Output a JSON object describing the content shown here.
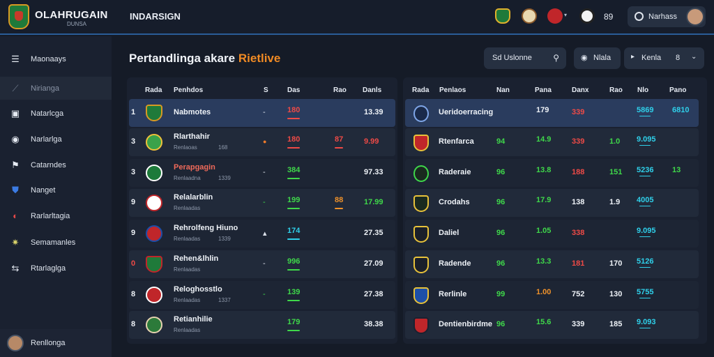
{
  "header": {
    "brand": "OLAHRUGAIN",
    "brand_sub": "DUNSA",
    "nav_title": "INDARSIGN",
    "count": "89",
    "user_name": "Narhass"
  },
  "sidebar": {
    "items": [
      {
        "label": "Maonaays",
        "icon": "stack-icon"
      },
      {
        "label": "Nirianga",
        "icon": "chart-icon"
      },
      {
        "label": "Natarlcga",
        "icon": "card-icon"
      },
      {
        "label": "Narlarlga",
        "icon": "ring-icon"
      },
      {
        "label": "Catarndes",
        "icon": "flag-icon"
      },
      {
        "label": "Nanget",
        "icon": "shield-icon"
      },
      {
        "label": "Rarlarltagia",
        "icon": "ball-icon"
      },
      {
        "label": "Semamanles",
        "icon": "gear-icon"
      },
      {
        "label": "Rtarlaglga",
        "icon": "transfer-icon"
      }
    ],
    "footer_label": "Renllonga"
  },
  "main": {
    "title_prefix": "Pertandlinga akare",
    "title_accent": "Rietlive",
    "search_label": "Sd Uslonne",
    "filter_label": "Nlala",
    "sort_label": "Kenla",
    "sort_value": "8"
  },
  "left_table": {
    "headers": [
      "Rada",
      "Penhdos",
      "S",
      "Das",
      "Rao",
      "Danls"
    ],
    "rows": [
      {
        "rank": "1",
        "team": "Nabmotes",
        "sub": "",
        "sub2": "",
        "mark": "-",
        "c1": "180",
        "c2": "",
        "total": "13.39",
        "c1_color": "red",
        "c2_color": "",
        "total_color": "white"
      },
      {
        "rank": "3",
        "team": "Rlarthahir",
        "sub": "Renlaoas",
        "sub2": "168",
        "mark": "●",
        "c1": "180",
        "c2": "87",
        "total": "9.99",
        "c1_color": "red",
        "c2_color": "red",
        "total_color": "red"
      },
      {
        "rank": "3",
        "team": "Perapgagin",
        "sub": "Renlaadna",
        "sub2": "1339",
        "mark": "-",
        "c1": "384",
        "c2": "",
        "total": "97.33",
        "c1_color": "green",
        "c2_color": "",
        "total_color": "white"
      },
      {
        "rank": "9",
        "team": "Relalarblin",
        "sub": "Renlaadas",
        "sub2": "",
        "mark": "-",
        "c1": "199",
        "c2": "88",
        "total": "17.99",
        "c1_color": "green",
        "c2_color": "orange",
        "total_color": "green"
      },
      {
        "rank": "9",
        "team": "Rehrolfeng Hiuno",
        "sub": "Renlaadas",
        "sub2": "1339",
        "mark": "▴",
        "c1": "174",
        "c2": "",
        "total": "27.35",
        "c1_color": "cyan",
        "c2_color": "",
        "total_color": "white"
      },
      {
        "rank": "0",
        "team": "Rehen&lhlin",
        "sub": "Renlaadas",
        "sub2": "",
        "mark": "-",
        "c1": "996",
        "c2": "",
        "total": "27.09",
        "c1_color": "green",
        "c2_color": "",
        "total_color": "white"
      },
      {
        "rank": "8",
        "team": "Reloghosstlo",
        "sub": "Renlaadas",
        "sub2": "1337",
        "mark": "-",
        "c1": "139",
        "c2": "",
        "total": "27.38",
        "c1_color": "green",
        "c2_color": "",
        "total_color": "white"
      },
      {
        "rank": "8",
        "team": "Retianhilie",
        "sub": "Renlaadas",
        "sub2": "",
        "mark": "",
        "c1": "179",
        "c2": "",
        "total": "38.38",
        "c1_color": "green",
        "c2_color": "",
        "total_color": "white"
      }
    ]
  },
  "right_table": {
    "headers": [
      "Rada",
      "Penlaos",
      "Nan",
      "Pana",
      "Danx",
      "Rao",
      "Nlo",
      "Pano"
    ],
    "rows": [
      {
        "team": "Ueridoerracing",
        "a": "",
        "b": "179",
        "c": "339",
        "d": "",
        "e": "5869",
        "f": "6810",
        "b_color": "white",
        "c_color": "red",
        "d_color": "",
        "e_color": "cyan",
        "f_color": "cyan"
      },
      {
        "team": "Rtenfarca",
        "a": "94",
        "b": "14.9",
        "c": "339",
        "d": "1.0",
        "e": "9.095",
        "f": "",
        "b_color": "green",
        "c_color": "red",
        "d_color": "green",
        "e_color": "cyan",
        "f_color": ""
      },
      {
        "team": "Raderaie",
        "a": "96",
        "b": "13.8",
        "c": "188",
        "d": "151",
        "e": "5236",
        "f": "13",
        "b_color": "green",
        "c_color": "red",
        "d_color": "green",
        "e_color": "cyan",
        "f_color": "green"
      },
      {
        "team": "Crodahs",
        "a": "96",
        "b": "17.9",
        "c": "138",
        "d": "1.9",
        "e": "4005",
        "f": "",
        "b_color": "green",
        "c_color": "white",
        "d_color": "white",
        "e_color": "cyan",
        "f_color": ""
      },
      {
        "team": "Daliel",
        "a": "96",
        "b": "1.05",
        "c": "338",
        "d": "",
        "e": "9.095",
        "f": "",
        "b_color": "green",
        "c_color": "red",
        "d_color": "",
        "e_color": "cyan",
        "f_color": ""
      },
      {
        "team": "Radende",
        "a": "96",
        "b": "13.3",
        "c": "181",
        "d": "170",
        "e": "5126",
        "f": "",
        "b_color": "green",
        "c_color": "red",
        "d_color": "white",
        "e_color": "cyan",
        "f_color": ""
      },
      {
        "team": "Rerlinle",
        "a": "99",
        "b": "1.00",
        "c": "752",
        "d": "130",
        "e": "5755",
        "f": "",
        "b_color": "orange",
        "c_color": "white",
        "d_color": "white",
        "e_color": "cyan",
        "f_color": ""
      },
      {
        "team": "Dentienbirdme",
        "a": "96",
        "b": "15.6",
        "c": "339",
        "d": "185",
        "e": "9.093",
        "f": "",
        "b_color": "green",
        "c_color": "white",
        "d_color": "white",
        "e_color": "cyan",
        "f_color": ""
      }
    ]
  },
  "colors": {
    "accent": "#f08a24",
    "topbar_border": "#2a5d98",
    "selected_row": "#2a3c5e",
    "green": "#3fd84a",
    "red": "#ef4a46",
    "cyan": "#2fd0ea"
  }
}
